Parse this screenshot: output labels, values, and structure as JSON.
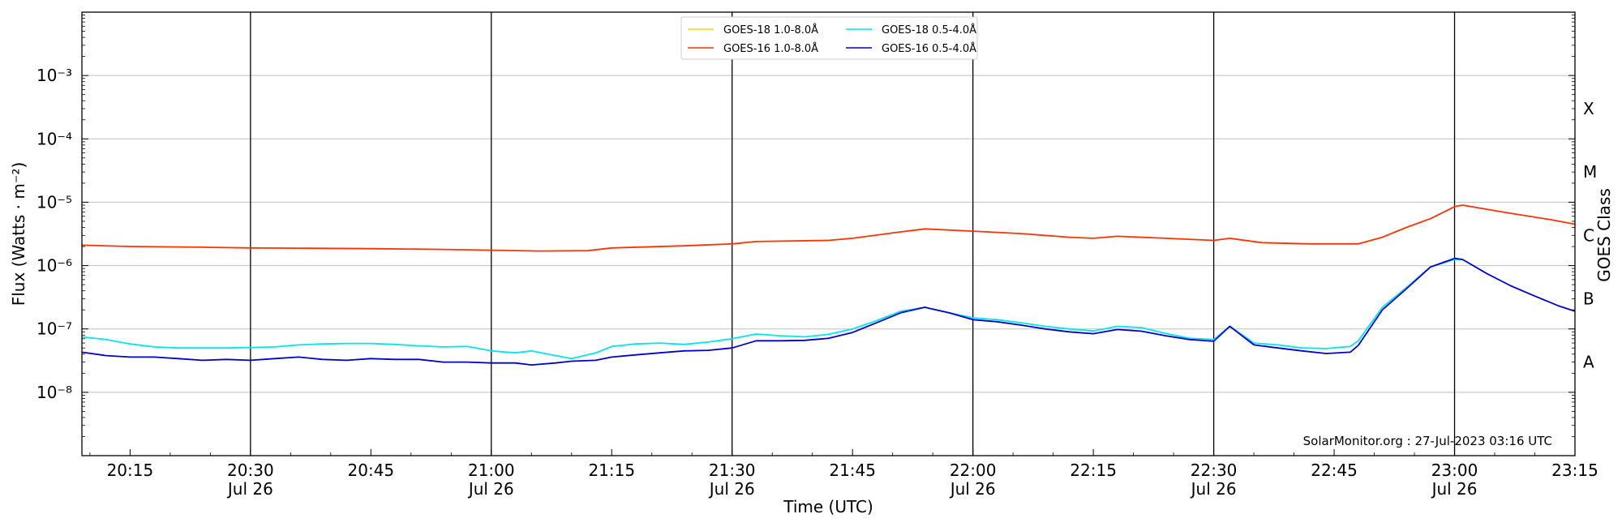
{
  "chart_data": {
    "type": "line",
    "xlabel": "Time (UTC)",
    "ylabel": "Flux (Watts · m⁻²)",
    "right_axis_label": "GOES Class",
    "y_scale": "log",
    "ylim": [
      1e-09,
      0.01
    ],
    "xlim": [
      "2023-07-26 20:09",
      "2023-07-26 23:15"
    ],
    "grid": "horizontal at each decade",
    "legend_position": "top-center",
    "y_ticks": [
      {
        "value": 1e-08,
        "label": "10⁻⁸"
      },
      {
        "value": 1e-07,
        "label": "10⁻⁷"
      },
      {
        "value": 1e-06,
        "label": "10⁻⁶"
      },
      {
        "value": 1e-05,
        "label": "10⁻⁵"
      },
      {
        "value": 0.0001,
        "label": "10⁻⁴"
      },
      {
        "value": 0.001,
        "label": "10⁻³"
      }
    ],
    "x_ticks": [
      {
        "time": "20:15",
        "label": "20:15",
        "sublabel": ""
      },
      {
        "time": "20:30",
        "label": "20:30",
        "sublabel": "Jul 26"
      },
      {
        "time": "20:45",
        "label": "20:45",
        "sublabel": ""
      },
      {
        "time": "21:00",
        "label": "21:00",
        "sublabel": "Jul 26"
      },
      {
        "time": "21:15",
        "label": "21:15",
        "sublabel": ""
      },
      {
        "time": "21:30",
        "label": "21:30",
        "sublabel": "Jul 26"
      },
      {
        "time": "21:45",
        "label": "21:45",
        "sublabel": ""
      },
      {
        "time": "22:00",
        "label": "22:00",
        "sublabel": "Jul 26"
      },
      {
        "time": "22:15",
        "label": "22:15",
        "sublabel": ""
      },
      {
        "time": "22:30",
        "label": "22:30",
        "sublabel": "Jul 26"
      },
      {
        "time": "22:45",
        "label": "22:45",
        "sublabel": ""
      },
      {
        "time": "23:00",
        "label": "23:00",
        "sublabel": "Jul 26"
      },
      {
        "time": "23:15",
        "label": "23:15",
        "sublabel": ""
      }
    ],
    "vertical_lines": [
      "20:30",
      "21:00",
      "21:30",
      "22:00",
      "22:30",
      "23:00"
    ],
    "goes_classes": [
      {
        "label": "X",
        "value": 0.0003
      },
      {
        "label": "M",
        "value": 3e-05
      },
      {
        "label": "C",
        "value": 3e-06
      },
      {
        "label": "B",
        "value": 3e-07
      },
      {
        "label": "A",
        "value": 3e-08
      }
    ],
    "series": [
      {
        "name": "GOES-18 1.0-8.0Å",
        "color": "#ffd400",
        "x": [],
        "values": []
      },
      {
        "name": "GOES-18 0.5-4.0Å",
        "color": "#00e5ee",
        "x": [
          "20:09",
          "20:12",
          "20:15",
          "20:18",
          "20:21",
          "20:24",
          "20:27",
          "20:30",
          "20:33",
          "20:36",
          "20:39",
          "20:42",
          "20:45",
          "20:48",
          "20:51",
          "20:54",
          "20:57",
          "21:00",
          "21:03",
          "21:05",
          "21:08",
          "21:10",
          "21:13",
          "21:15",
          "21:18",
          "21:21",
          "21:24",
          "21:27",
          "21:30",
          "21:33",
          "21:36",
          "21:39",
          "21:42",
          "21:45",
          "21:48",
          "21:51",
          "21:54",
          "21:57",
          "22:00",
          "22:03",
          "22:06",
          "22:09",
          "22:12",
          "22:15",
          "22:18",
          "22:21",
          "22:24",
          "22:27",
          "22:30",
          "22:32",
          "22:35",
          "22:38",
          "22:41",
          "22:44",
          "22:47",
          "22:48",
          "22:51",
          "22:54",
          "22:57",
          "23:00",
          "23:01"
        ],
        "values": [
          7.5e-08,
          6.8e-08,
          5.8e-08,
          5.2e-08,
          5e-08,
          5e-08,
          5e-08,
          5.1e-08,
          5.2e-08,
          5.6e-08,
          5.8e-08,
          5.9e-08,
          5.9e-08,
          5.7e-08,
          5.4e-08,
          5.2e-08,
          5.3e-08,
          4.5e-08,
          4.2e-08,
          4.5e-08,
          3.8e-08,
          3.4e-08,
          4.2e-08,
          5.3e-08,
          5.8e-08,
          6e-08,
          5.7e-08,
          6.2e-08,
          7e-08,
          8.3e-08,
          7.8e-08,
          7.5e-08,
          8.2e-08,
          1e-07,
          1.35e-07,
          1.9e-07,
          2.2e-07,
          1.8e-07,
          1.5e-07,
          1.4e-07,
          1.25e-07,
          1.1e-07,
          1e-07,
          9.3e-08,
          1.1e-07,
          1.05e-07,
          8.5e-08,
          7.1e-08,
          6.8e-08,
          1.1e-07,
          6e-08,
          5.6e-08,
          5e-08,
          4.9e-08,
          5.3e-08,
          6.5e-08,
          2.2e-07,
          4.5e-07,
          9.5e-07,
          1.25e-06,
          1.25e-06
        ]
      },
      {
        "name": "GOES-16 1.0-8.0Å",
        "color": "#ff3300",
        "x": [
          "20:09",
          "20:15",
          "20:24",
          "20:30",
          "20:36",
          "20:45",
          "20:54",
          "21:00",
          "21:06",
          "21:12",
          "21:15",
          "21:24",
          "21:30",
          "21:33",
          "21:42",
          "21:45",
          "21:51",
          "21:54",
          "22:00",
          "22:06",
          "22:12",
          "22:15",
          "22:18",
          "22:24",
          "22:30",
          "22:32",
          "22:36",
          "22:42",
          "22:48",
          "22:51",
          "22:54",
          "22:57",
          "23:00",
          "23:01",
          "23:06",
          "23:12",
          "23:15"
        ],
        "values": [
          2.1e-06,
          2e-06,
          1.95e-06,
          1.9e-06,
          1.88e-06,
          1.85e-06,
          1.8e-06,
          1.75e-06,
          1.7e-06,
          1.72e-06,
          1.9e-06,
          2.05e-06,
          2.2e-06,
          2.4e-06,
          2.5e-06,
          2.7e-06,
          3.4e-06,
          3.8e-06,
          3.5e-06,
          3.2e-06,
          2.8e-06,
          2.7e-06,
          2.9e-06,
          2.7e-06,
          2.5e-06,
          2.7e-06,
          2.3e-06,
          2.2e-06,
          2.2e-06,
          2.8e-06,
          4e-06,
          5.5e-06,
          8.5e-06,
          9e-06,
          7e-06,
          5.3e-06,
          4.5e-06
        ]
      },
      {
        "name": "GOES-16 0.5-4.0Å",
        "color": "#0000cc",
        "x": [
          "20:09",
          "20:12",
          "20:15",
          "20:18",
          "20:21",
          "20:24",
          "20:27",
          "20:30",
          "20:33",
          "20:36",
          "20:39",
          "20:42",
          "20:45",
          "20:48",
          "20:51",
          "20:54",
          "20:57",
          "21:00",
          "21:03",
          "21:05",
          "21:08",
          "21:10",
          "21:13",
          "21:15",
          "21:18",
          "21:21",
          "21:24",
          "21:27",
          "21:30",
          "21:33",
          "21:36",
          "21:39",
          "21:42",
          "21:45",
          "21:48",
          "21:51",
          "21:54",
          "21:57",
          "22:00",
          "22:03",
          "22:06",
          "22:09",
          "22:12",
          "22:15",
          "22:18",
          "22:21",
          "22:24",
          "22:27",
          "22:30",
          "22:32",
          "22:35",
          "22:38",
          "22:41",
          "22:44",
          "22:47",
          "22:48",
          "22:51",
          "22:54",
          "22:57",
          "23:00",
          "23:01",
          "23:04",
          "23:07",
          "23:10",
          "23:13",
          "23:15"
        ],
        "values": [
          4.3e-08,
          3.8e-08,
          3.6e-08,
          3.6e-08,
          3.4e-08,
          3.2e-08,
          3.3e-08,
          3.2e-08,
          3.4e-08,
          3.6e-08,
          3.3e-08,
          3.2e-08,
          3.4e-08,
          3.3e-08,
          3.3e-08,
          3e-08,
          3e-08,
          2.9e-08,
          2.9e-08,
          2.7e-08,
          2.9e-08,
          3.1e-08,
          3.2e-08,
          3.6e-08,
          3.9e-08,
          4.2e-08,
          4.5e-08,
          4.6e-08,
          5e-08,
          6.5e-08,
          6.5e-08,
          6.6e-08,
          7.1e-08,
          8.8e-08,
          1.25e-07,
          1.8e-07,
          2.2e-07,
          1.8e-07,
          1.4e-07,
          1.3e-07,
          1.15e-07,
          1e-07,
          9e-08,
          8.4e-08,
          9.8e-08,
          9.2e-08,
          7.8e-08,
          6.8e-08,
          6.4e-08,
          1.1e-07,
          5.6e-08,
          5e-08,
          4.5e-08,
          4.1e-08,
          4.3e-08,
          5.5e-08,
          2e-07,
          4.3e-07,
          9.5e-07,
          1.3e-06,
          1.25e-06,
          7.5e-07,
          4.8e-07,
          3.3e-07,
          2.3e-07,
          1.9e-07
        ]
      }
    ],
    "watermark": "SolarMonitor.org : 27-Jul-2023 03:16 UTC"
  }
}
